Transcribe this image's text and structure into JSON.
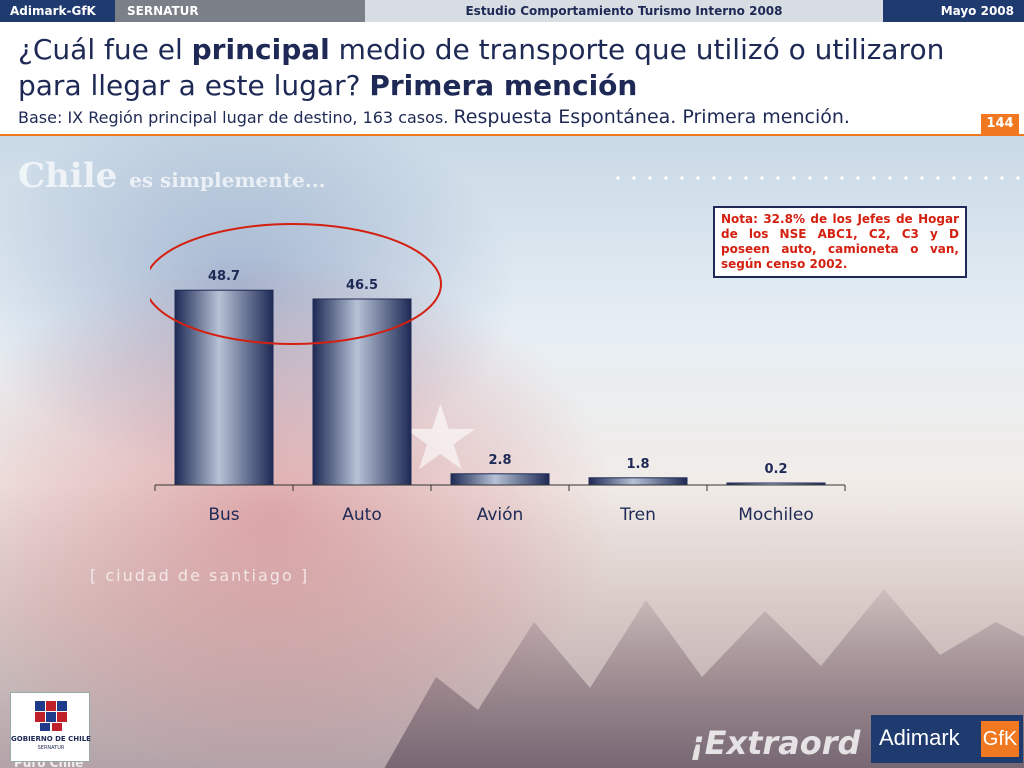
{
  "header": {
    "left_brand": "Adimark-GfK",
    "client": "SERNATUR",
    "study": "Estudio Comportamiento Turismo Interno 2008",
    "date": "Mayo 2008"
  },
  "title": {
    "part1": "¿Cuál fue el ",
    "bold1": "principal",
    "part2": " medio de transporte que utilizó o utilizaron para llegar a este lugar? ",
    "bold2": "Primera mención"
  },
  "subtitle": {
    "base": "Base: IX Región principal lugar de destino, 163 casos.",
    "response": "Respuesta Espontánea. Primera mención."
  },
  "page_number": "144",
  "note": "Nota: 32.8% de los Jefes de Hogar de los NSE ABC1, C2, C3 y D poseen auto, camioneta o van, según censo 2002.",
  "background_text": {
    "chile": "Chile",
    "simple": "es simplemente...",
    "ciudad": "[ ciudad de santiago ]",
    "extra": "¡Extraord",
    "puro": "Puro Chile"
  },
  "logos": {
    "gobierno_line1": "GOBIERNO DE CHILE",
    "gobierno_line2": "SERNATUR",
    "adimark": "Adimark",
    "gfk": "GfK"
  },
  "colors": {
    "accent": "#f07820",
    "navy": "#1e2a55",
    "note_text": "#d42010",
    "highlight_ellipse": "#d42010"
  },
  "chart_data": {
    "type": "bar",
    "categories": [
      "Bus",
      "Auto",
      "Avión",
      "Tren",
      "Mochileo"
    ],
    "values": [
      48.7,
      46.5,
      2.8,
      1.8,
      0.2
    ],
    "value_labels": [
      "48.7",
      "46.5",
      "2.8",
      "1.8",
      "0.2"
    ],
    "ylim": [
      0,
      60
    ],
    "grid": false,
    "highlighted_categories": [
      "Bus",
      "Auto"
    ]
  }
}
